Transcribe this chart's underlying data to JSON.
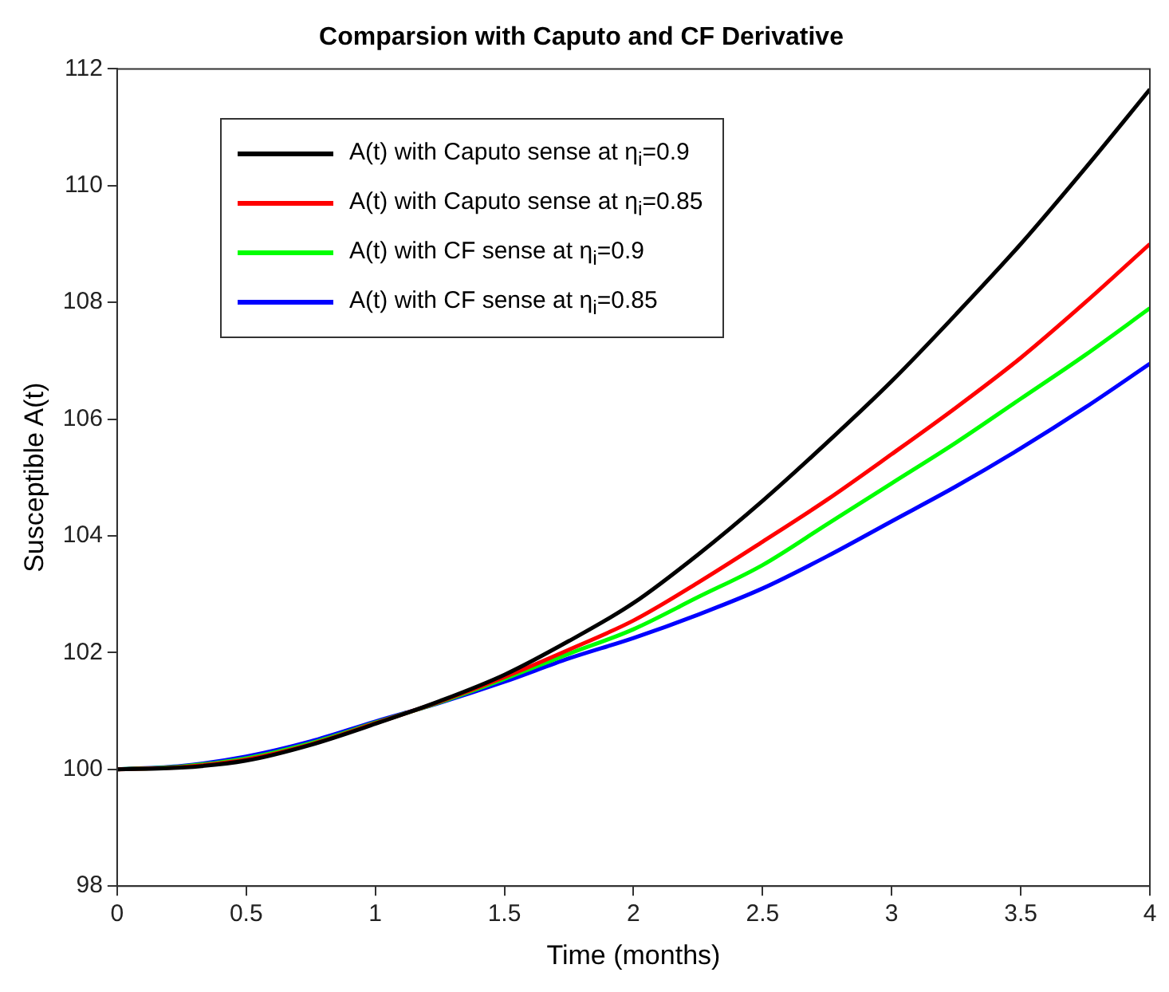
{
  "chart_data": {
    "type": "line",
    "title": "Comparsion with Caputo and CF Derivative",
    "xlabel": "Time (months)",
    "ylabel": "Susceptible A(t)",
    "x": [
      0,
      0.25,
      0.5,
      0.75,
      1,
      1.25,
      1.5,
      1.75,
      2,
      2.25,
      2.5,
      2.75,
      3,
      3.25,
      3.5,
      3.75,
      4
    ],
    "series": [
      {
        "name": "A(t) with Caputo sense at η$_{i}$=0.9",
        "color": "#000000",
        "values": [
          100,
          100.03,
          100.15,
          100.42,
          100.78,
          101.17,
          101.62,
          102.2,
          102.85,
          103.68,
          104.6,
          105.6,
          106.65,
          107.8,
          109.0,
          110.3,
          111.65
        ]
      },
      {
        "name": "A(t) with Caputo sense at η$_{i}$=0.85",
        "color": "#ff0000",
        "values": [
          100,
          100.04,
          100.17,
          100.43,
          100.79,
          101.16,
          101.58,
          102.05,
          102.55,
          103.2,
          103.9,
          104.62,
          105.4,
          106.2,
          107.05,
          108.0,
          109.0
        ]
      },
      {
        "name": "A(t) with CF sense at η$_{i}$=0.9",
        "color": "#00ff00",
        "values": [
          100,
          100.05,
          100.19,
          100.45,
          100.8,
          101.15,
          101.55,
          101.98,
          102.4,
          102.95,
          103.5,
          104.2,
          104.9,
          105.6,
          106.35,
          107.1,
          107.9
        ]
      },
      {
        "name": "A(t) with CF sense at η$_{i}$=0.85",
        "color": "#0000ff",
        "values": [
          100,
          100.06,
          100.22,
          100.48,
          100.82,
          101.14,
          101.5,
          101.9,
          102.25,
          102.65,
          103.1,
          103.65,
          104.25,
          104.85,
          105.5,
          106.2,
          106.95
        ]
      }
    ],
    "xlim": [
      0,
      4
    ],
    "xticks": [
      0,
      0.5,
      1,
      1.5,
      2,
      2.5,
      3,
      3.5,
      4
    ],
    "ylim": [
      98,
      112
    ],
    "yticks": [
      98,
      100,
      102,
      104,
      106,
      108,
      110,
      112
    ],
    "grid": false,
    "legend": "top left",
    "marker": "none",
    "line_style": "solid"
  }
}
